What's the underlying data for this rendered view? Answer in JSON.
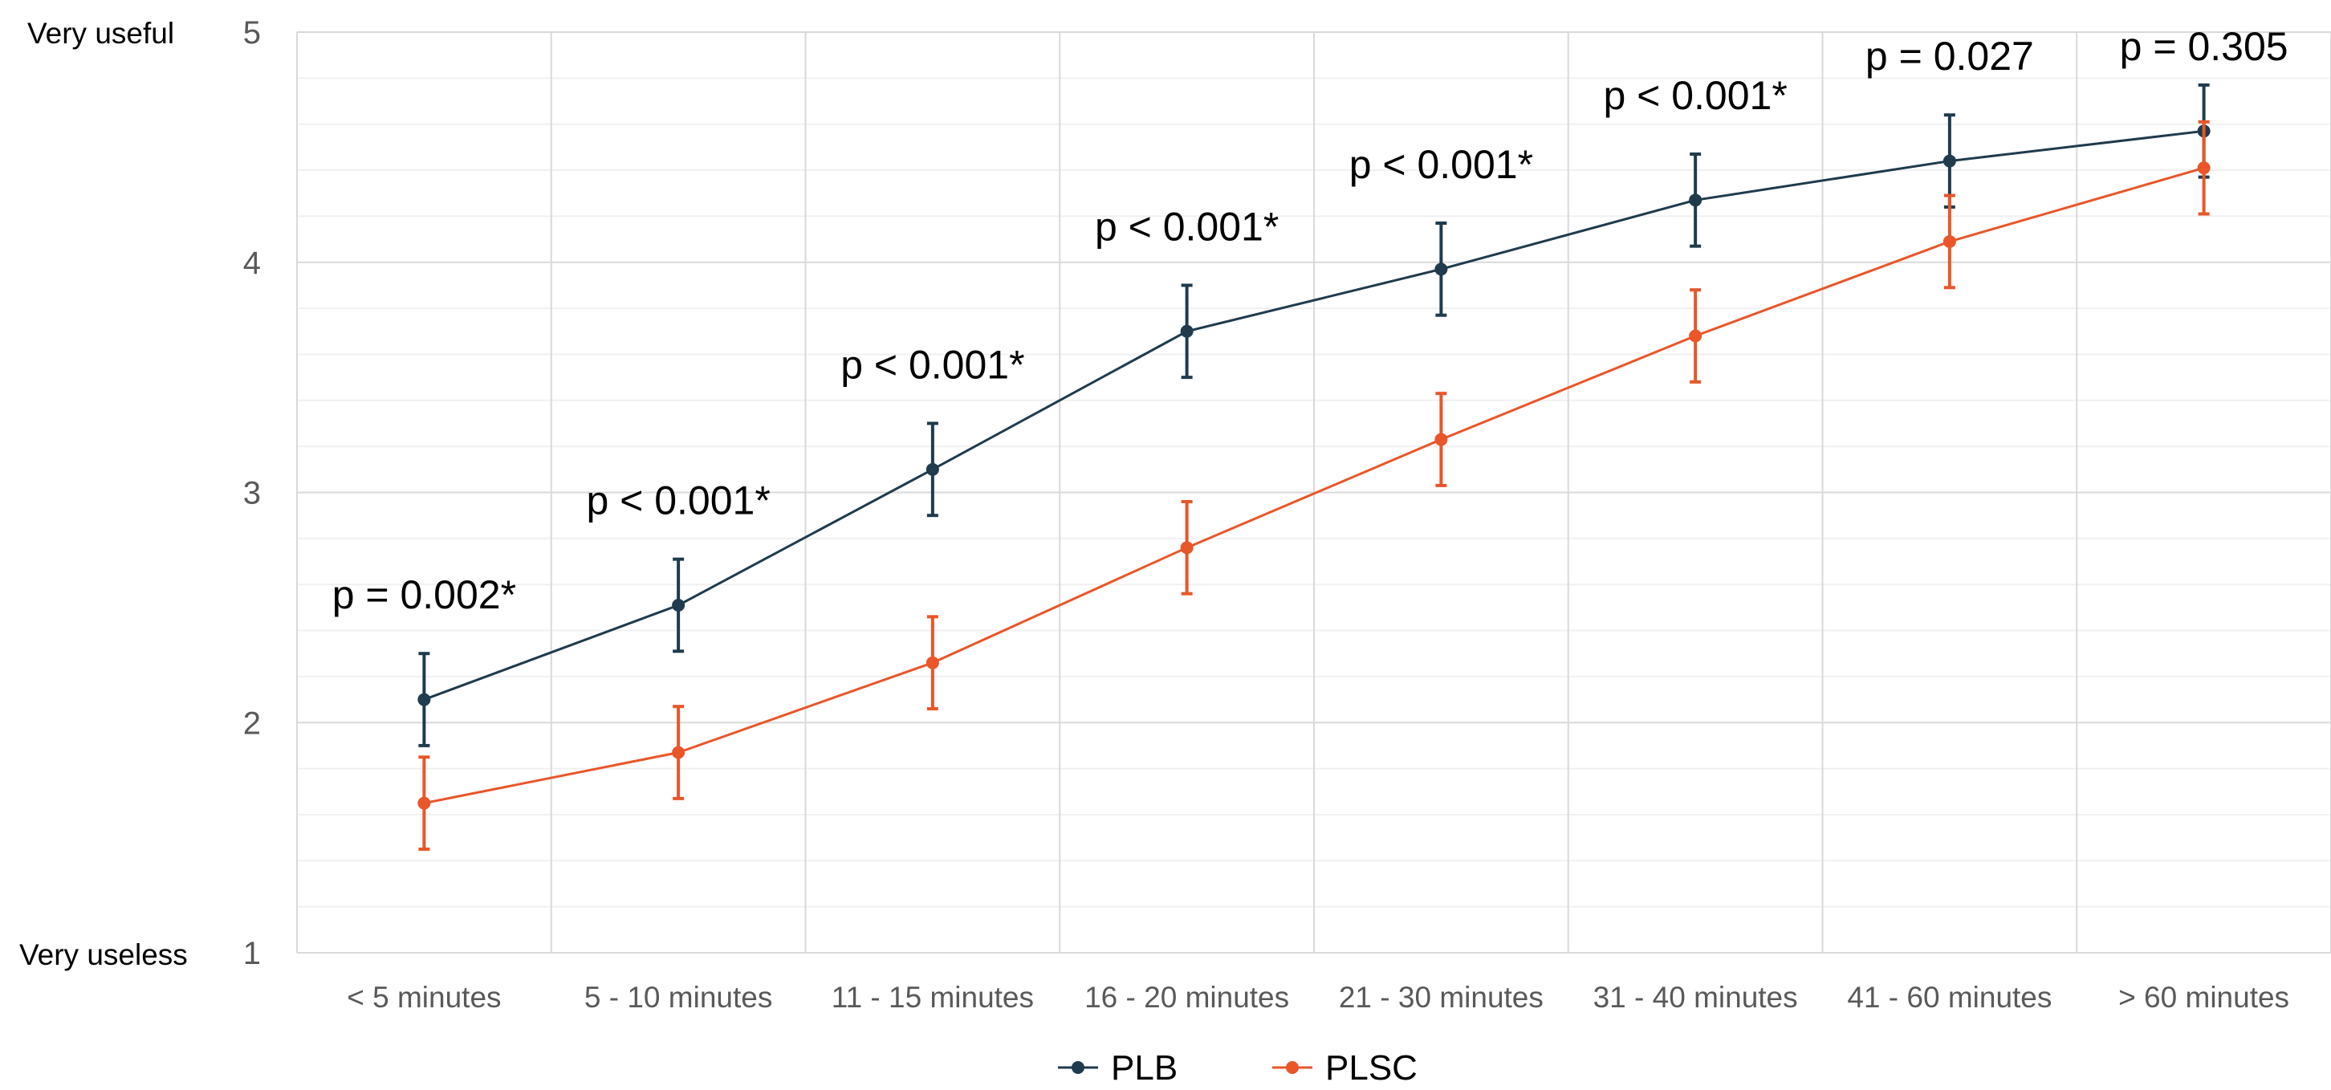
{
  "chart_data": {
    "type": "line",
    "title": "",
    "xlabel": "",
    "ylabel": "",
    "ylim": [
      1,
      5
    ],
    "y_ticks": [
      "1",
      "2",
      "3",
      "4",
      "5"
    ],
    "y_end_labels": {
      "top": "Very useful",
      "bottom": "Very useless"
    },
    "categories": [
      "< 5 minutes",
      "5 - 10 minutes",
      "11 - 15 minutes",
      "16 - 20 minutes",
      "21 - 30 minutes",
      "31 - 40 minutes",
      "41 - 60 minutes",
      "> 60 minutes"
    ],
    "grid": true,
    "legend_position": "bottom",
    "error_bar_half_width": 0.2,
    "series": [
      {
        "name": "PLB",
        "color": "#1f3b4d",
        "values": [
          2.1,
          2.51,
          3.1,
          3.7,
          3.97,
          4.27,
          4.44,
          4.57
        ]
      },
      {
        "name": "PLSC",
        "color": "#e8562a",
        "values": [
          1.65,
          1.87,
          2.26,
          2.76,
          3.23,
          3.68,
          4.09,
          4.41
        ]
      }
    ],
    "annotations": [
      "p = 0.002*",
      "p < 0.001*",
      "p < 0.001*",
      "p < 0.001*",
      "p < 0.001*",
      "p < 0.001*",
      "p = 0.027",
      "p = 0.305"
    ]
  }
}
